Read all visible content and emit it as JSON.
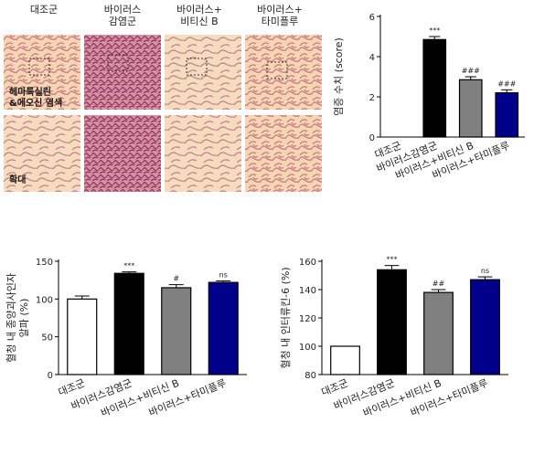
{
  "histology": {
    "column_labels": [
      "대조군",
      "바이러스\n감염군",
      "바이러스+\n비티신 B",
      "바이러스+\n타미플루"
    ],
    "stain_label_line1": "헤마톡실린",
    "stain_label_line2": "&에오신 염색",
    "zoom_label": "확대",
    "colors": {
      "background": "#f4d7b0",
      "tissue": "#c9718a",
      "tissue_dark": "#8e3a6a"
    }
  },
  "chart_data": [
    {
      "type": "bar",
      "ylabel": "염증 수치 (score)",
      "categories": [
        "대조군",
        "바이러스감염군",
        "바이러스+비티신 B",
        "바이러스+타미플루"
      ],
      "values": [
        0,
        4.85,
        2.85,
        2.2
      ],
      "errors": [
        0,
        0.15,
        0.15,
        0.15
      ],
      "annotations": [
        "",
        "***",
        "###",
        "###"
      ],
      "ylim": [
        0,
        6
      ],
      "yticks": [
        0,
        2,
        4,
        6
      ],
      "colors": [
        "#ffffff",
        "#000000",
        "#808080",
        "#00008b"
      ]
    },
    {
      "type": "bar",
      "ylabel_line1": "혈청 내 종양괴사인자",
      "ylabel_line2": "알파 (%)",
      "categories": [
        "대조군",
        "바이러스감염군",
        "바이러스+비티신 B",
        "바이러스+타미플루"
      ],
      "values": [
        100,
        134,
        115,
        122
      ],
      "errors": [
        4,
        2,
        4,
        2
      ],
      "annotations": [
        "",
        "***",
        "#",
        "ns"
      ],
      "ylim": [
        0,
        150
      ],
      "yticks": [
        0,
        50,
        100,
        150
      ],
      "colors": [
        "#ffffff",
        "#000000",
        "#808080",
        "#00008b"
      ]
    },
    {
      "type": "bar",
      "ylabel": "혈청 내 인터류킨-6 (%)",
      "categories": [
        "대조군",
        "바이러스감염군",
        "바이러스+비티신 B",
        "바이러스+타미플루"
      ],
      "values": [
        100,
        154,
        138,
        147
      ],
      "errors": [
        0,
        3,
        2,
        2
      ],
      "annotations": [
        "",
        "***",
        "##",
        "ns"
      ],
      "ylim": [
        80,
        160
      ],
      "yticks": [
        80,
        100,
        120,
        140,
        160
      ],
      "colors": [
        "#ffffff",
        "#000000",
        "#808080",
        "#00008b"
      ]
    }
  ]
}
